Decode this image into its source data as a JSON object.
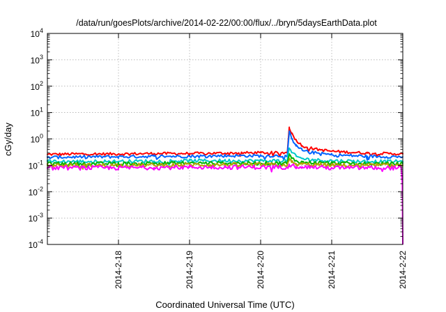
{
  "chart_data": {
    "type": "line",
    "title": "/data/run/goesPlots/archive/2014-02-22/00:00/flux/../bryn/5daysEarthData.plot",
    "xlabel": "Coordinated Universal Time (UTC)",
    "ylabel": "cGy/day",
    "yscale": "log",
    "ylim": [
      0.0001,
      10000
    ],
    "y_ticks": [
      {
        "value": 0.0001,
        "base": "10",
        "exp": "-4"
      },
      {
        "value": 0.001,
        "base": "10",
        "exp": "-3"
      },
      {
        "value": 0.01,
        "base": "10",
        "exp": "-2"
      },
      {
        "value": 0.1,
        "base": "10",
        "exp": "-1"
      },
      {
        "value": 1,
        "base": "10",
        "exp": "0"
      },
      {
        "value": 10,
        "base": "10",
        "exp": "1"
      },
      {
        "value": 100,
        "base": "10",
        "exp": "2"
      },
      {
        "value": 1000,
        "base": "10",
        "exp": "3"
      },
      {
        "value": 10000,
        "base": "10",
        "exp": "4"
      }
    ],
    "xlim": [
      "2014-02-17 00:00",
      "2014-02-22 00:00"
    ],
    "x_ticks": [
      "2014-2-18",
      "2014-2-19",
      "2014-2-20",
      "2014-2-21",
      "2014-2-22"
    ],
    "grid": true,
    "legend": "none",
    "series": [
      {
        "color": "#ff0000",
        "x": [
          "2014-02-17 00:00",
          "2014-02-17 12:00",
          "2014-02-18 00:00",
          "2014-02-18 12:00",
          "2014-02-19 00:00",
          "2014-02-19 12:00",
          "2014-02-20 00:00",
          "2014-02-20 09:00",
          "2014-02-20 09:40",
          "2014-02-20 10:30",
          "2014-02-20 12:00",
          "2014-02-20 14:00",
          "2014-02-20 18:00",
          "2014-02-21 00:00",
          "2014-02-21 12:00",
          "2014-02-21 23:59"
        ],
        "y": [
          0.26,
          0.27,
          0.27,
          0.28,
          0.28,
          0.29,
          0.3,
          0.3,
          2.8,
          1.6,
          0.9,
          0.55,
          0.42,
          0.34,
          0.29,
          0.27
        ]
      },
      {
        "color": "#0064ff",
        "x": [
          "2014-02-17 00:00",
          "2014-02-17 12:00",
          "2014-02-18 00:00",
          "2014-02-18 12:00",
          "2014-02-19 00:00",
          "2014-02-19 12:00",
          "2014-02-20 00:00",
          "2014-02-20 09:00",
          "2014-02-20 09:40",
          "2014-02-20 10:30",
          "2014-02-20 12:00",
          "2014-02-20 14:00",
          "2014-02-20 18:00",
          "2014-02-21 00:00",
          "2014-02-21 12:00",
          "2014-02-21 23:59"
        ],
        "y": [
          0.2,
          0.21,
          0.21,
          0.22,
          0.22,
          0.23,
          0.23,
          0.23,
          1.8,
          1.0,
          0.6,
          0.38,
          0.3,
          0.25,
          0.22,
          0.21
        ]
      },
      {
        "color": "#00c8c8",
        "x": [
          "2014-02-17 00:00",
          "2014-02-17 12:00",
          "2014-02-18 00:00",
          "2014-02-18 12:00",
          "2014-02-19 00:00",
          "2014-02-19 12:00",
          "2014-02-20 00:00",
          "2014-02-20 09:00",
          "2014-02-20 09:40",
          "2014-02-20 10:30",
          "2014-02-20 12:00",
          "2014-02-20 14:00",
          "2014-02-20 18:00",
          "2014-02-21 00:00",
          "2014-02-21 12:00",
          "2014-02-21 23:59"
        ],
        "y": [
          0.14,
          0.14,
          0.14,
          0.145,
          0.15,
          0.15,
          0.15,
          0.15,
          0.45,
          0.3,
          0.22,
          0.18,
          0.16,
          0.15,
          0.14,
          0.14
        ]
      },
      {
        "color": "#00b400",
        "x": [
          "2014-02-17 00:00",
          "2014-02-17 12:00",
          "2014-02-18 00:00",
          "2014-02-18 12:00",
          "2014-02-19 00:00",
          "2014-02-19 12:00",
          "2014-02-20 00:00",
          "2014-02-20 09:00",
          "2014-02-20 09:40",
          "2014-02-20 10:30",
          "2014-02-20 12:00",
          "2014-02-20 14:00",
          "2014-02-20 18:00",
          "2014-02-21 00:00",
          "2014-02-21 12:00",
          "2014-02-21 23:59"
        ],
        "y": [
          0.115,
          0.115,
          0.115,
          0.12,
          0.12,
          0.12,
          0.12,
          0.12,
          0.25,
          0.18,
          0.15,
          0.13,
          0.125,
          0.12,
          0.115,
          0.115
        ]
      },
      {
        "color": "#b4a000",
        "x": [
          "2014-02-17 00:00",
          "2014-02-17 12:00",
          "2014-02-18 00:00",
          "2014-02-18 12:00",
          "2014-02-19 00:00",
          "2014-02-19 12:00",
          "2014-02-20 00:00",
          "2014-02-20 09:00",
          "2014-02-20 09:40",
          "2014-02-20 10:30",
          "2014-02-20 12:00",
          "2014-02-20 14:00",
          "2014-02-20 18:00",
          "2014-02-21 00:00",
          "2014-02-21 12:00",
          "2014-02-21 23:59"
        ],
        "y": [
          0.1,
          0.1,
          0.1,
          0.1,
          0.105,
          0.105,
          0.105,
          0.105,
          0.16,
          0.13,
          0.115,
          0.11,
          0.105,
          0.1,
          0.1,
          0.1
        ]
      },
      {
        "color": "#ff00ff",
        "x": [
          "2014-02-17 00:00",
          "2014-02-17 12:00",
          "2014-02-18 00:00",
          "2014-02-18 12:00",
          "2014-02-19 00:00",
          "2014-02-19 12:00",
          "2014-02-20 00:00",
          "2014-02-20 09:00",
          "2014-02-20 09:40",
          "2014-02-20 10:30",
          "2014-02-20 12:00",
          "2014-02-20 14:00",
          "2014-02-20 18:00",
          "2014-02-21 00:00",
          "2014-02-21 12:00",
          "2014-02-21 23:30",
          "2014-02-21 23:50",
          "2014-02-22 00:00"
        ],
        "y": [
          0.08,
          0.08,
          0.08,
          0.082,
          0.085,
          0.085,
          0.085,
          0.085,
          0.11,
          0.1,
          0.09,
          0.088,
          0.085,
          0.08,
          0.08,
          0.08,
          0.02,
          0.0001
        ]
      }
    ]
  }
}
